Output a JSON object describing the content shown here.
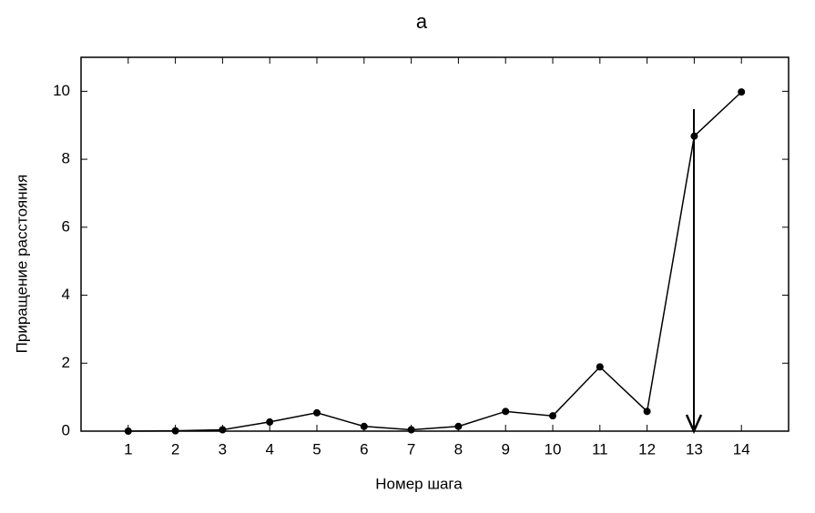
{
  "chart_data": {
    "type": "line",
    "title": "a",
    "x_label": "Номер шага",
    "y_label": "Приращение расстояния",
    "x": [
      1,
      2,
      3,
      4,
      5,
      6,
      7,
      8,
      9,
      10,
      11,
      12,
      13,
      14
    ],
    "series": [
      {
        "color": "#000000",
        "values": [
          0,
          0.01,
          0.04,
          0.27,
          0.54,
          0.14,
          0.04,
          0.14,
          0.58,
          0.45,
          1.89,
          0.58,
          8.68,
          9.98
        ]
      }
    ],
    "xlim": [
      0,
      15
    ],
    "xticks": [
      1,
      2,
      3,
      4,
      5,
      6,
      7,
      8,
      9,
      10,
      11,
      12,
      13,
      14
    ],
    "ylim": [
      0,
      11
    ],
    "yticks": [
      0,
      2,
      4,
      6,
      8,
      10
    ],
    "grid": false
  }
}
